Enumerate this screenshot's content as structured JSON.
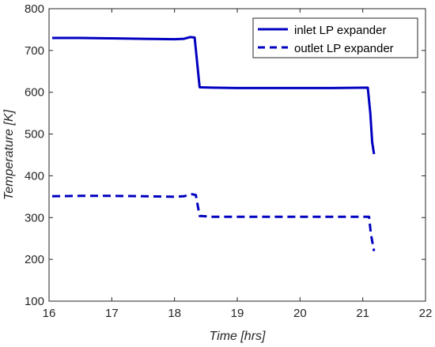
{
  "chart_data": {
    "type": "line",
    "title": "",
    "xlabel": "Time [hrs]",
    "ylabel": "Temperature [K]",
    "xlim": [
      16,
      22
    ],
    "ylim": [
      100,
      800
    ],
    "xticks": [
      16,
      17,
      18,
      19,
      20,
      21,
      22
    ],
    "yticks": [
      100,
      200,
      300,
      400,
      500,
      600,
      700,
      800
    ],
    "grid": false,
    "legend_position": "top-right",
    "series": [
      {
        "name": "inlet LP expander",
        "style": "solid",
        "color": "#0000c0",
        "points": [
          [
            16.05,
            730
          ],
          [
            16.5,
            730
          ],
          [
            17.0,
            729
          ],
          [
            17.5,
            728
          ],
          [
            18.0,
            727
          ],
          [
            18.15,
            728
          ],
          [
            18.25,
            732
          ],
          [
            18.32,
            731
          ],
          [
            18.4,
            612
          ],
          [
            18.6,
            611
          ],
          [
            19.0,
            610
          ],
          [
            20.0,
            610
          ],
          [
            20.5,
            610
          ],
          [
            21.08,
            611
          ],
          [
            21.12,
            550
          ],
          [
            21.15,
            480
          ],
          [
            21.18,
            452
          ]
        ]
      },
      {
        "name": "outlet LP expander",
        "style": "dashed",
        "color": "#0000c0",
        "points": [
          [
            16.05,
            351
          ],
          [
            16.5,
            352
          ],
          [
            17.0,
            352
          ],
          [
            17.5,
            351
          ],
          [
            18.0,
            350
          ],
          [
            18.15,
            351
          ],
          [
            18.28,
            356
          ],
          [
            18.34,
            354
          ],
          [
            18.4,
            304
          ],
          [
            18.6,
            302
          ],
          [
            19.0,
            302
          ],
          [
            20.0,
            302
          ],
          [
            20.5,
            302
          ],
          [
            21.1,
            302
          ],
          [
            21.13,
            260
          ],
          [
            21.18,
            220
          ]
        ]
      }
    ]
  }
}
